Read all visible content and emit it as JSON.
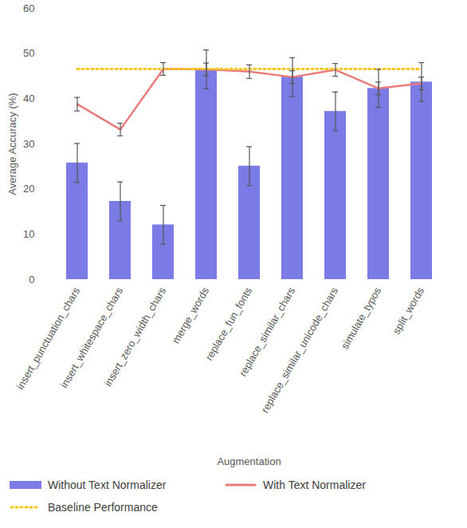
{
  "chart_data": {
    "type": "bar",
    "x_label": "Augmentation",
    "y_label": "Average Accuracy (%)",
    "categories": [
      "insert_punctuation_chars",
      "insert_whitespace_chars",
      "insert_zero_width_chars",
      "merge_words",
      "replace_fun_fonts",
      "replace_similar_chars",
      "replace_similar_unicode_chars",
      "simulate_typos",
      "split_words"
    ],
    "series": [
      {
        "name": "Without Text Normalizer",
        "type": "bar",
        "color": "#7b7be6",
        "values": [
          25.8,
          17.3,
          12.1,
          46.5,
          25.1,
          44.8,
          37.2,
          42.3,
          43.7
        ],
        "errors": [
          4.3,
          4.3,
          4.3,
          4.3,
          4.3,
          4.3,
          4.3,
          4.2,
          4.3
        ]
      },
      {
        "name": "With Text Normalizer",
        "type": "line",
        "color": "#eb7b7b",
        "line_style": "solid",
        "values": [
          38.8,
          33.2,
          46.6,
          46.5,
          46.0,
          44.8,
          46.4,
          42.3,
          43.4
        ],
        "errors": [
          1.5,
          1.4,
          1.4,
          1.4,
          1.5,
          1.4,
          1.4,
          1.4,
          1.4
        ]
      },
      {
        "name": "Baseline Performance",
        "type": "line",
        "color": "#f5c518",
        "line_style": "dotted",
        "values": [
          46.6,
          46.6,
          46.6,
          46.6,
          46.6,
          46.6,
          46.6,
          46.6,
          46.6
        ]
      }
    ],
    "ylim": [
      0,
      60
    ],
    "yticks": [
      0,
      10,
      20,
      30,
      40,
      50,
      60
    ],
    "grid": false,
    "legend": "bottom"
  }
}
